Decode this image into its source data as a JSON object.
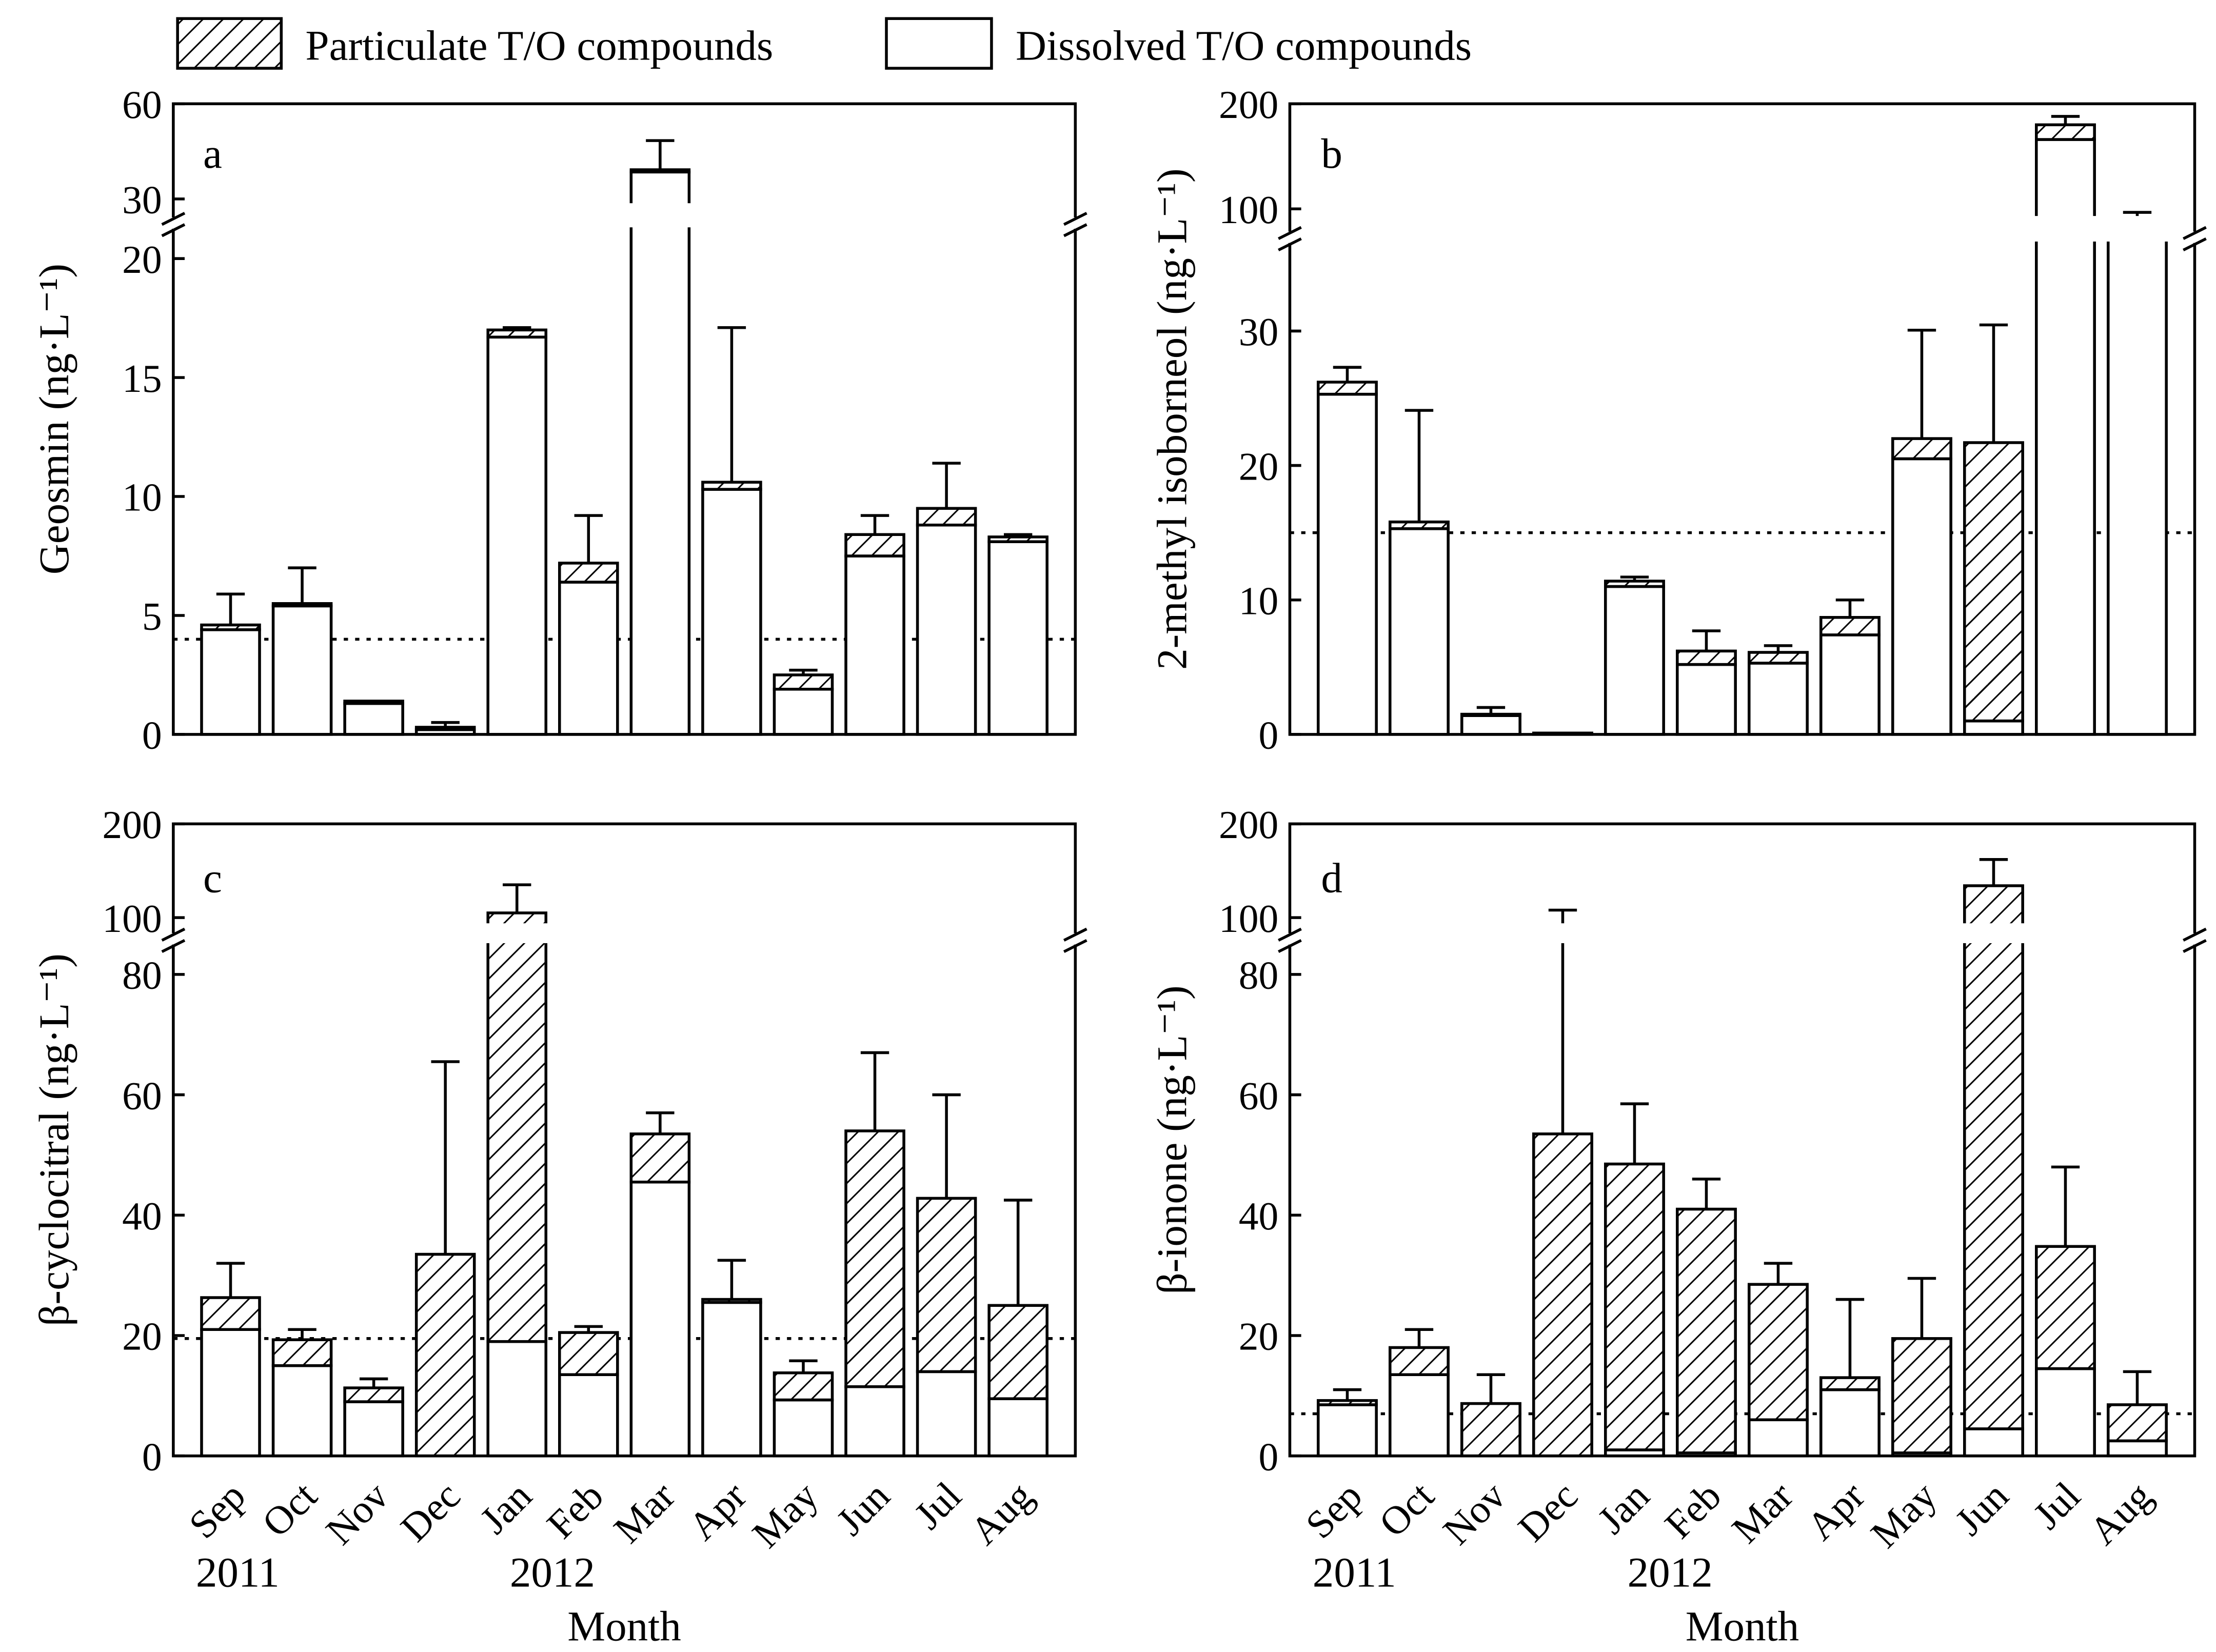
{
  "legend": [
    {
      "label": "Particulate T/O compounds",
      "fill": "hatch"
    },
    {
      "label": "Dissolved T/O compounds",
      "fill": "open"
    }
  ],
  "months": [
    "Sep",
    "Oct",
    "Nov",
    "Dec",
    "Jan",
    "Feb",
    "Mar",
    "Apr",
    "May",
    "Jun",
    "Jul",
    "Aug"
  ],
  "years": [
    "2011",
    "2012"
  ],
  "xlabel": "Month",
  "chart_data": [
    {
      "type": "bar",
      "stacked": true,
      "panel": "a",
      "ylabel": "Geosmin (ng·L⁻¹)",
      "yticks_lower": [
        0,
        5,
        10,
        15,
        20
      ],
      "yticks_upper": [
        30,
        60
      ],
      "ylim_lower": [
        0,
        20
      ],
      "ylim_upper": [
        30,
        60
      ],
      "threshold": 4,
      "dissolved": [
        4.4,
        5.4,
        1.3,
        0.2,
        16.7,
        6.4,
        38.5,
        10.3,
        1.9,
        7.5,
        8.8,
        8.1
      ],
      "total": [
        4.6,
        5.5,
        1.4,
        0.3,
        17.0,
        7.2,
        39.2,
        10.6,
        2.5,
        8.4,
        9.5,
        8.3
      ],
      "error_top": [
        5.9,
        7.0,
        null,
        0.5,
        17.1,
        9.2,
        48.4,
        17.1,
        2.7,
        9.2,
        11.4,
        8.4
      ]
    },
    {
      "type": "bar",
      "stacked": true,
      "panel": "b",
      "ylabel": "2-methyl isoborneol (ng·L⁻¹)",
      "yticks_lower": [
        0,
        10,
        20,
        30
      ],
      "yticks_upper": [
        100,
        200
      ],
      "ylim_lower": [
        0,
        35
      ],
      "ylim_upper": [
        100,
        200
      ],
      "threshold": 15,
      "dissolved": [
        25.3,
        15.3,
        1.4,
        0.1,
        11.0,
        5.2,
        5.3,
        7.4,
        20.5,
        1.0,
        166,
        89
      ],
      "total": [
        26.2,
        15.8,
        1.5,
        0.1,
        11.4,
        6.2,
        6.1,
        8.7,
        22.0,
        21.7,
        180,
        90
      ],
      "error_top": [
        27.3,
        24.1,
        2.0,
        null,
        11.7,
        7.7,
        6.6,
        10.0,
        30.5,
        33.5,
        188,
        98
      ]
    },
    {
      "type": "bar",
      "stacked": true,
      "panel": "c",
      "ylabel": "β-cyclocitral (ng·L⁻¹)",
      "yticks_lower": [
        0,
        20,
        40,
        60,
        80
      ],
      "yticks_upper": [
        100,
        200
      ],
      "ylim_lower": [
        0,
        80
      ],
      "ylim_upper": [
        100,
        200
      ],
      "threshold": 19.5,
      "dissolved": [
        21,
        15,
        9,
        0,
        19,
        13.5,
        45.5,
        25.5,
        9.3,
        11.5,
        14,
        9.5
      ],
      "total": [
        26.3,
        19.3,
        11.3,
        33.5,
        105,
        20.5,
        53.5,
        26,
        13.8,
        54,
        42.8,
        25
      ],
      "error_top": [
        32,
        21,
        12.8,
        65.5,
        135,
        21.5,
        57,
        32.5,
        15.8,
        67,
        60,
        42.5
      ]
    },
    {
      "type": "bar",
      "stacked": true,
      "panel": "d",
      "ylabel": "β-ionone (ng·L⁻¹)",
      "yticks_lower": [
        0,
        20,
        40,
        60,
        80
      ],
      "yticks_upper": [
        100,
        200
      ],
      "ylim_lower": [
        0,
        80
      ],
      "ylim_upper": [
        100,
        200
      ],
      "threshold": 7,
      "dissolved": [
        8.5,
        13.5,
        0,
        0,
        1,
        0.5,
        6,
        11,
        0.5,
        4.5,
        14.5,
        2.5
      ],
      "total": [
        9.2,
        18,
        8.7,
        53.5,
        48.5,
        41,
        28.5,
        13,
        19.5,
        134,
        34.8,
        8.5
      ],
      "error_top": [
        11,
        21,
        13.5,
        108,
        58.5,
        46,
        32,
        26,
        29.5,
        162,
        48,
        14
      ]
    }
  ]
}
